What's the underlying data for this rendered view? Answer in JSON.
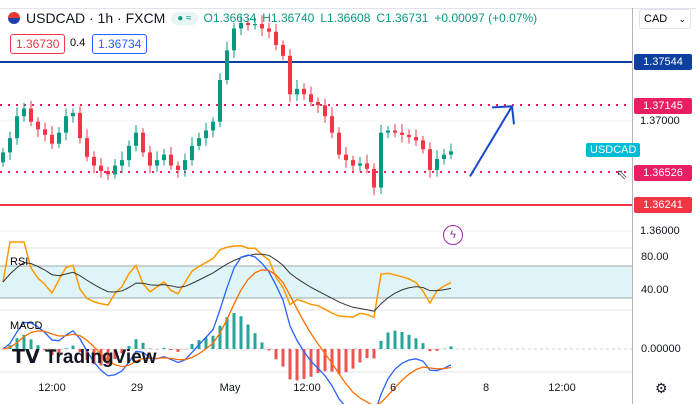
{
  "header": {
    "symbol": "USDCAD · 1h · FXCM",
    "open": "O1.36634",
    "high": "H1.36740",
    "low": "L1.36608",
    "close": "C1.36731",
    "change": "+0.00097 (+0.07%)",
    "bid": "1.36730",
    "spread": "0.4",
    "ask": "1.36734"
  },
  "currency_select": "CAD",
  "price_axis": [
    "1.37000",
    "1.36000"
  ],
  "levels": [
    {
      "label": "1.37544",
      "color": "#0d3fa0",
      "style": "solid"
    },
    {
      "label": "1.37145",
      "color": "#e91e63",
      "style": "dotted"
    },
    {
      "label": "1.36526",
      "color": "#e91e63",
      "style": "dotted"
    },
    {
      "label": "1.36241",
      "color": "#f23645",
      "style": "solid"
    }
  ],
  "symbol_tag": "USDCAD",
  "rsi": {
    "label": "RSI",
    "ticks": [
      "80.00",
      "40.00"
    ]
  },
  "macd": {
    "label": "MACD",
    "ticks": [
      "0.00000"
    ]
  },
  "time_axis": [
    "12:00",
    "29",
    "May",
    "12:00",
    "6",
    "8",
    "12:00"
  ],
  "logo": "TradingView",
  "chart_data": {
    "type": "candlestick",
    "ylim": [
      1.359,
      1.3805
    ],
    "closes": [
      1.3672,
      1.3685,
      1.3705,
      1.3712,
      1.37,
      1.3693,
      1.3688,
      1.368,
      1.369,
      1.3705,
      1.3708,
      1.3685,
      1.3668,
      1.366,
      1.3655,
      1.3652,
      1.366,
      1.3665,
      1.3678,
      1.369,
      1.3672,
      1.366,
      1.3665,
      1.367,
      1.366,
      1.3656,
      1.3665,
      1.3678,
      1.3685,
      1.3692,
      1.37,
      1.3738,
      1.3765,
      1.3785,
      1.379,
      1.3788,
      1.3789,
      1.3785,
      1.3782,
      1.377,
      1.376,
      1.3725,
      1.373,
      1.3725,
      1.3718,
      1.3715,
      1.3705,
      1.369,
      1.367,
      1.3665,
      1.366,
      1.3662,
      1.3657,
      1.364,
      1.369,
      1.3692,
      1.369,
      1.3688,
      1.3686,
      1.3683,
      1.3675,
      1.3656,
      1.3666,
      1.367,
      1.3673
    ],
    "projection": {
      "from": 1.3652,
      "to": 1.3714
    },
    "colors": {
      "up": "#089981",
      "down": "#f23645"
    }
  }
}
